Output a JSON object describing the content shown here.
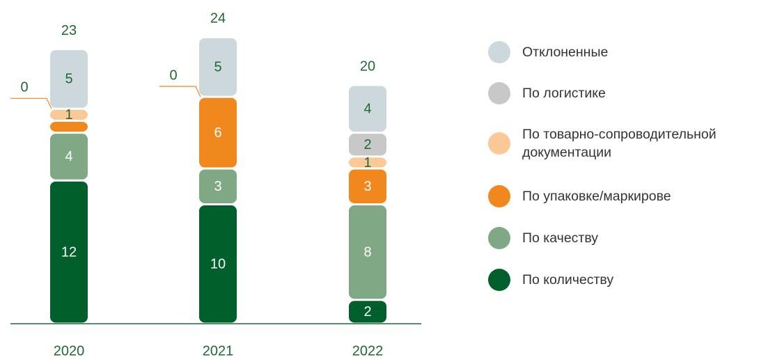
{
  "chart_data": {
    "type": "stacked_bar",
    "categories": [
      "2020",
      "2021",
      "2022"
    ],
    "totals": [
      23,
      24,
      20
    ],
    "series": [
      {
        "name": "Отклоненные",
        "color": "#cdd8dc",
        "values": [
          5,
          5,
          4
        ]
      },
      {
        "name": "По логистике",
        "color": "#c8c8c8",
        "values": [
          0,
          0,
          2
        ]
      },
      {
        "name": "По товарно-сопроводительной документации",
        "color": "#fbc897",
        "values": [
          1,
          0,
          1
        ],
        "value_labels": [
          "1",
          null,
          "1"
        ]
      },
      {
        "name": "По упаковке/маркирове",
        "color": "#f0881d",
        "values": [
          1,
          6,
          3
        ],
        "value_labels": [
          null,
          "6",
          "3"
        ]
      },
      {
        "name": "По качеству",
        "color": "#80a884",
        "values": [
          4,
          3,
          8
        ]
      },
      {
        "name": "По количеству",
        "color": "#005f2b",
        "values": [
          12,
          10,
          2
        ]
      }
    ]
  }
}
